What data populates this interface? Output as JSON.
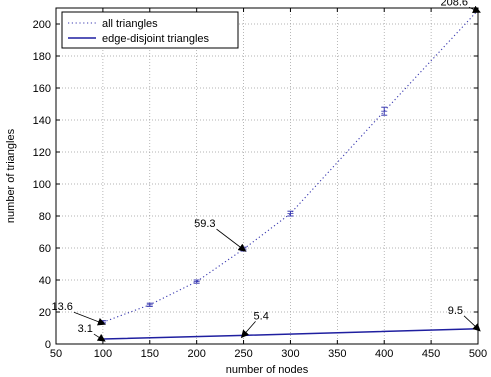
{
  "chart_data": {
    "type": "line",
    "title": "",
    "xlabel": "number of nodes",
    "ylabel": "number of triangles",
    "xlim": [
      50,
      500
    ],
    "ylim": [
      0,
      210
    ],
    "xticks": [
      50,
      100,
      150,
      200,
      250,
      300,
      350,
      400,
      450,
      500
    ],
    "yticks": [
      0,
      20,
      40,
      60,
      80,
      100,
      120,
      140,
      160,
      180,
      200
    ],
    "grid": true,
    "legend_position": "top-left",
    "series": [
      {
        "name": "all triangles",
        "style": "dotted",
        "color": "#3a3ab0",
        "x": [
          100,
          150,
          200,
          250,
          300,
          400,
          500
        ],
        "y": [
          13.6,
          24.5,
          39.0,
          59.3,
          81.5,
          145.5,
          208.6
        ],
        "error": [
          1.0,
          1.0,
          1.0,
          1.2,
          1.5,
          2.5,
          0
        ]
      },
      {
        "name": "edge-disjoint triangles",
        "style": "solid",
        "color": "#1f1fa0",
        "x": [
          100,
          250,
          500
        ],
        "y": [
          3.1,
          5.4,
          9.5
        ],
        "error": [
          0,
          0,
          0
        ]
      }
    ],
    "annotations": [
      {
        "text": "13.6",
        "x": 100,
        "y": 13.6
      },
      {
        "text": "3.1",
        "x": 100,
        "y": 3.1
      },
      {
        "text": "59.3",
        "x": 250,
        "y": 59.3
      },
      {
        "text": "5.4",
        "x": 250,
        "y": 5.4
      },
      {
        "text": "9.5",
        "x": 500,
        "y": 9.5
      },
      {
        "text": "208.6",
        "x": 500,
        "y": 208.6
      }
    ]
  }
}
